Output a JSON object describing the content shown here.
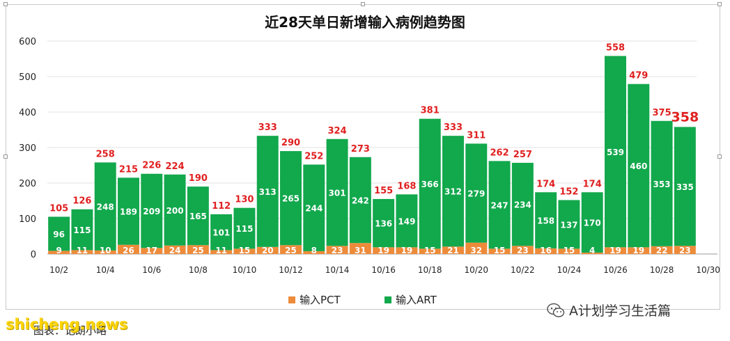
{
  "chart_data": {
    "type": "bar",
    "stacked": true,
    "title": "近28天单日新增输入病例趋势图",
    "categories": [
      "10/2",
      "10/3",
      "10/4",
      "10/5",
      "10/6",
      "10/7",
      "10/8",
      "10/9",
      "10/10",
      "10/11",
      "10/12",
      "10/13",
      "10/14",
      "10/15",
      "10/16",
      "10/17",
      "10/18",
      "10/19",
      "10/20",
      "10/21",
      "10/22",
      "10/23",
      "10/24",
      "10/25",
      "10/26",
      "10/27",
      "10/28",
      "10/29"
    ],
    "x_tick_labels": [
      "10/2",
      "10/4",
      "10/6",
      "10/8",
      "10/10",
      "10/12",
      "10/14",
      "10/16",
      "10/18",
      "10/20",
      "10/22",
      "10/24",
      "10/26",
      "10/28",
      "10/30"
    ],
    "series": [
      {
        "name": "输入PCT",
        "color": "#ed8b3a",
        "values": [
          9,
          11,
          10,
          26,
          17,
          24,
          25,
          11,
          15,
          20,
          25,
          8,
          23,
          31,
          19,
          19,
          15,
          21,
          32,
          15,
          23,
          16,
          15,
          4,
          19,
          19,
          22,
          23
        ]
      },
      {
        "name": "输入ART",
        "color": "#12a84c",
        "values": [
          96,
          115,
          248,
          189,
          209,
          200,
          165,
          101,
          115,
          313,
          265,
          244,
          301,
          242,
          136,
          149,
          366,
          312,
          279,
          247,
          234,
          158,
          137,
          170,
          539,
          460,
          353,
          335
        ]
      }
    ],
    "totals": [
      105,
      126,
      258,
      215,
      226,
      224,
      190,
      112,
      130,
      333,
      290,
      252,
      324,
      273,
      155,
      168,
      381,
      333,
      311,
      262,
      257,
      174,
      152,
      174,
      558,
      479,
      375,
      358
    ],
    "ylim": [
      0,
      600
    ],
    "yticks": [
      0,
      100,
      200,
      300,
      400,
      500,
      600
    ],
    "grid": true,
    "legend_position": "bottom"
  },
  "legend": [
    {
      "label": "输入PCT",
      "color": "#ed8b3a"
    },
    {
      "label": "输入ART",
      "color": "#12a84c"
    }
  ],
  "footer": {
    "wechat_label": "A计划学习生活篇",
    "caption": "图表：记朗小略",
    "watermark": "shicheng.news"
  },
  "colors": {
    "total_label": "#e02020",
    "grid": "#e0e0e0"
  }
}
